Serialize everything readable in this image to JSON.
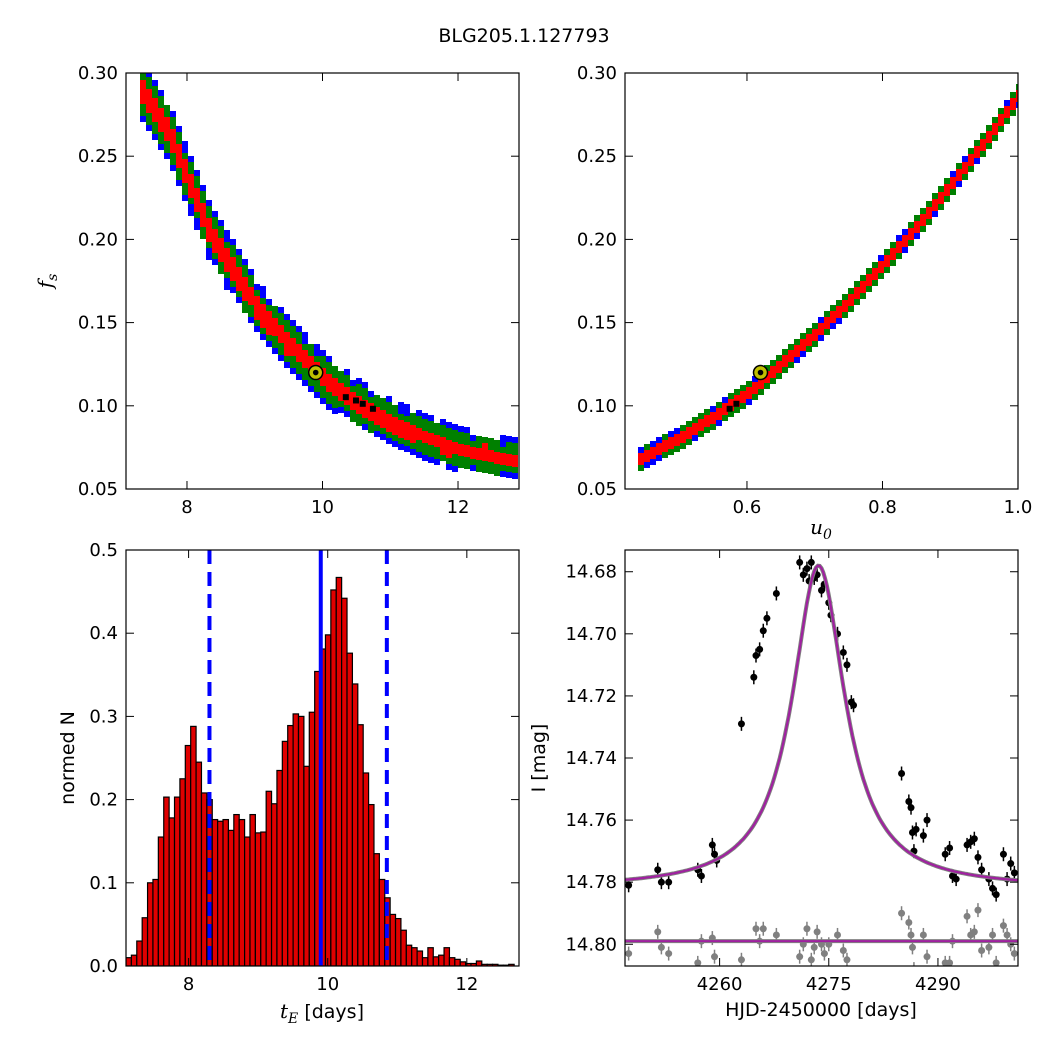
{
  "title": "BLG205.1.127793",
  "colors": {
    "blue": "#0000ff",
    "green": "#008000",
    "red": "#ff0000",
    "black": "#000000",
    "marker_fill": "#bfbf00",
    "fit": "#a020a0",
    "gray": "#808080",
    "bar": "#e00000"
  },
  "chart_data": [
    {
      "id": "ul",
      "type": "heatmap",
      "xlim": [
        7.1,
        12.9
      ],
      "ylim": [
        0.05,
        0.3
      ],
      "xticks": [
        "8",
        "10",
        "12"
      ],
      "xtick_values": [
        8,
        10,
        12
      ],
      "yticks": [
        "0.05",
        "0.10",
        "0.15",
        "0.20",
        "0.25",
        "0.30"
      ],
      "ytick_values": [
        0.05,
        0.1,
        0.15,
        0.2,
        0.25,
        0.3
      ],
      "ylabel_main": "f",
      "ylabel_sub": "s",
      "curve_note": "density band following f_s ≈ 0.0062*(t_E-6.2)^-1 ... shaped trend",
      "band_trend": [
        [
          7.3,
          0.29
        ],
        [
          7.7,
          0.265
        ],
        [
          8.0,
          0.235
        ],
        [
          8.3,
          0.205
        ],
        [
          8.7,
          0.18
        ],
        [
          9.0,
          0.16
        ],
        [
          9.5,
          0.137
        ],
        [
          10.0,
          0.117
        ],
        [
          10.5,
          0.102
        ],
        [
          11.0,
          0.091
        ],
        [
          11.5,
          0.082
        ],
        [
          12.0,
          0.075
        ],
        [
          12.8,
          0.069
        ]
      ],
      "best_fit": {
        "x": 9.9,
        "y": 0.12
      }
    },
    {
      "id": "ur",
      "type": "heatmap",
      "xlim": [
        0.42,
        1.0
      ],
      "ylim": [
        0.05,
        0.3
      ],
      "xticks": [
        "0.6",
        "0.8",
        "1.0"
      ],
      "xtick_values": [
        0.6,
        0.8,
        1.0
      ],
      "yticks": [
        "0.05",
        "0.10",
        "0.15",
        "0.20",
        "0.25",
        "0.30"
      ],
      "ytick_values": [
        0.05,
        0.1,
        0.15,
        0.2,
        0.25,
        0.3
      ],
      "xlabel_main": "u",
      "xlabel_sub": "0",
      "band_trend": [
        [
          0.43,
          0.068
        ],
        [
          0.5,
          0.083
        ],
        [
          0.55,
          0.096
        ],
        [
          0.6,
          0.11
        ],
        [
          0.65,
          0.128
        ],
        [
          0.7,
          0.146
        ],
        [
          0.75,
          0.166
        ],
        [
          0.8,
          0.188
        ],
        [
          0.85,
          0.211
        ],
        [
          0.9,
          0.236
        ],
        [
          0.95,
          0.262
        ],
        [
          1.0,
          0.29
        ]
      ],
      "best_fit": {
        "x": 0.62,
        "y": 0.12
      }
    },
    {
      "id": "ll",
      "type": "bar",
      "xlim": [
        7.1,
        12.75
      ],
      "ylim": [
        0.0,
        0.5
      ],
      "xticks": [
        "8",
        "10",
        "12"
      ],
      "xtick_values": [
        8,
        10,
        12
      ],
      "yticks": [
        "0.0",
        "0.1",
        "0.2",
        "0.3",
        "0.4",
        "0.5"
      ],
      "ytick_values": [
        0.0,
        0.1,
        0.2,
        0.3,
        0.4,
        0.5
      ],
      "ylabel": "normed N",
      "xlabel_main": "t",
      "xlabel_sub": "E",
      "xlabel_rest": " [days]",
      "bin_start": 7.1,
      "bin_width": 0.0775,
      "values": [
        0.01,
        0.013,
        0.03,
        0.058,
        0.1,
        0.104,
        0.155,
        0.203,
        0.178,
        0.203,
        0.225,
        0.265,
        0.288,
        0.245,
        0.208,
        0.2,
        0.176,
        0.174,
        0.176,
        0.163,
        0.182,
        0.176,
        0.155,
        0.182,
        0.16,
        0.161,
        0.21,
        0.195,
        0.235,
        0.27,
        0.289,
        0.303,
        0.3,
        0.24,
        0.305,
        0.354,
        0.381,
        0.398,
        0.452,
        0.467,
        0.442,
        0.376,
        0.339,
        0.29,
        0.232,
        0.194,
        0.135,
        0.104,
        0.082,
        0.062,
        0.057,
        0.043,
        0.025,
        0.022,
        0.018,
        0.01,
        0.022,
        0.011,
        0.013,
        0.022,
        0.01,
        0.008,
        0.005,
        0.003,
        0.003,
        0.006,
        0.002,
        0.002,
        0.002,
        0.001,
        0.001,
        0.002
      ],
      "vlines": {
        "median": 9.9,
        "lower": 8.3,
        "upper": 10.85
      }
    },
    {
      "id": "lr",
      "type": "scatter",
      "xlim": [
        4247,
        4301
      ],
      "ylim": [
        14.807,
        14.673
      ],
      "xticks": [
        "4260",
        "4275",
        "4290"
      ],
      "xtick_values": [
        4260,
        4275,
        4290
      ],
      "yticks": [
        "14.68",
        "14.70",
        "14.72",
        "14.74",
        "14.76",
        "14.78",
        "14.80"
      ],
      "ytick_values": [
        14.68,
        14.7,
        14.72,
        14.74,
        14.76,
        14.78,
        14.8
      ],
      "ylabel": "I [mag]",
      "xlabel": "HJD-2450000 [days]",
      "model": {
        "t0": 4273.6,
        "base": 14.782,
        "amp": 0.104,
        "width": 4.4
      },
      "residual_baseline": 14.799,
      "data_points": [
        [
          4247.5,
          14.781
        ],
        [
          4251.5,
          14.776
        ],
        [
          4252,
          14.78
        ],
        [
          4253,
          14.78
        ],
        [
          4257,
          14.776
        ],
        [
          4257.5,
          14.778
        ],
        [
          4259,
          14.768
        ],
        [
          4259.3,
          14.771
        ],
        [
          4259.6,
          14.773
        ],
        [
          4263,
          14.729
        ],
        [
          4264.7,
          14.714
        ],
        [
          4265,
          14.707
        ],
        [
          4265.5,
          14.705
        ],
        [
          4266,
          14.699
        ],
        [
          4266.5,
          14.695
        ],
        [
          4267.8,
          14.687
        ],
        [
          4271,
          14.677
        ],
        [
          4271.5,
          14.681
        ],
        [
          4272,
          14.679
        ],
        [
          4272.3,
          14.683
        ],
        [
          4272.6,
          14.677
        ],
        [
          4273,
          14.682
        ],
        [
          4273.4,
          14.681
        ],
        [
          4274,
          14.686
        ],
        [
          4274.4,
          14.684
        ],
        [
          4275,
          14.69
        ],
        [
          4275.3,
          14.694
        ],
        [
          4276.2,
          14.7
        ],
        [
          4277,
          14.706
        ],
        [
          4277.5,
          14.71
        ],
        [
          4278.1,
          14.722
        ],
        [
          4278.4,
          14.723
        ],
        [
          4285,
          14.745
        ],
        [
          4286,
          14.754
        ],
        [
          4286.3,
          14.756
        ],
        [
          4286.5,
          14.764
        ],
        [
          4286.7,
          14.77
        ],
        [
          4287,
          14.763
        ],
        [
          4288,
          14.765
        ],
        [
          4288.5,
          14.76
        ],
        [
          4291,
          14.771
        ],
        [
          4291.6,
          14.769
        ],
        [
          4292,
          14.778
        ],
        [
          4292.5,
          14.779
        ],
        [
          4294,
          14.768
        ],
        [
          4294.5,
          14.767
        ],
        [
          4295,
          14.766
        ],
        [
          4295.5,
          14.772
        ],
        [
          4296,
          14.776
        ],
        [
          4297,
          14.779
        ],
        [
          4297.5,
          14.782
        ],
        [
          4298,
          14.784
        ],
        [
          4299,
          14.771
        ],
        [
          4299.5,
          14.779
        ],
        [
          4300,
          14.774
        ],
        [
          4300.5,
          14.777
        ]
      ],
      "residual_points": [
        [
          4247.5,
          14.803
        ],
        [
          4251.5,
          14.796
        ],
        [
          4252,
          14.801
        ],
        [
          4253,
          14.803
        ],
        [
          4257,
          14.806
        ],
        [
          4257.5,
          14.799
        ],
        [
          4259,
          14.798
        ],
        [
          4259.3,
          14.804
        ],
        [
          4263,
          14.805
        ],
        [
          4265,
          14.795
        ],
        [
          4265.5,
          14.799
        ],
        [
          4266,
          14.795
        ],
        [
          4267.8,
          14.797
        ],
        [
          4271,
          14.804
        ],
        [
          4271.5,
          14.8
        ],
        [
          4272,
          14.795
        ],
        [
          4272.6,
          14.805
        ],
        [
          4273,
          14.801
        ],
        [
          4273.4,
          14.796
        ],
        [
          4274,
          14.8
        ],
        [
          4274.4,
          14.803
        ],
        [
          4275,
          14.8
        ],
        [
          4276.2,
          14.797
        ],
        [
          4277,
          14.802
        ],
        [
          4277.5,
          14.805
        ],
        [
          4285,
          14.79
        ],
        [
          4286,
          14.793
        ],
        [
          4286.3,
          14.797
        ],
        [
          4286.5,
          14.801
        ],
        [
          4286.7,
          14.808
        ],
        [
          4287,
          14.811
        ],
        [
          4288,
          14.797
        ],
        [
          4288.5,
          14.804
        ],
        [
          4291,
          14.806
        ],
        [
          4291.6,
          14.806
        ],
        [
          4292,
          14.799
        ],
        [
          4294,
          14.791
        ],
        [
          4294.5,
          14.797
        ],
        [
          4295,
          14.796
        ],
        [
          4295.5,
          14.789
        ],
        [
          4296,
          14.802
        ],
        [
          4297,
          14.801
        ],
        [
          4297.5,
          14.797
        ],
        [
          4298,
          14.806
        ],
        [
          4299,
          14.794
        ],
        [
          4299.5,
          14.797
        ],
        [
          4300,
          14.8
        ],
        [
          4300.5,
          14.803
        ]
      ]
    }
  ]
}
